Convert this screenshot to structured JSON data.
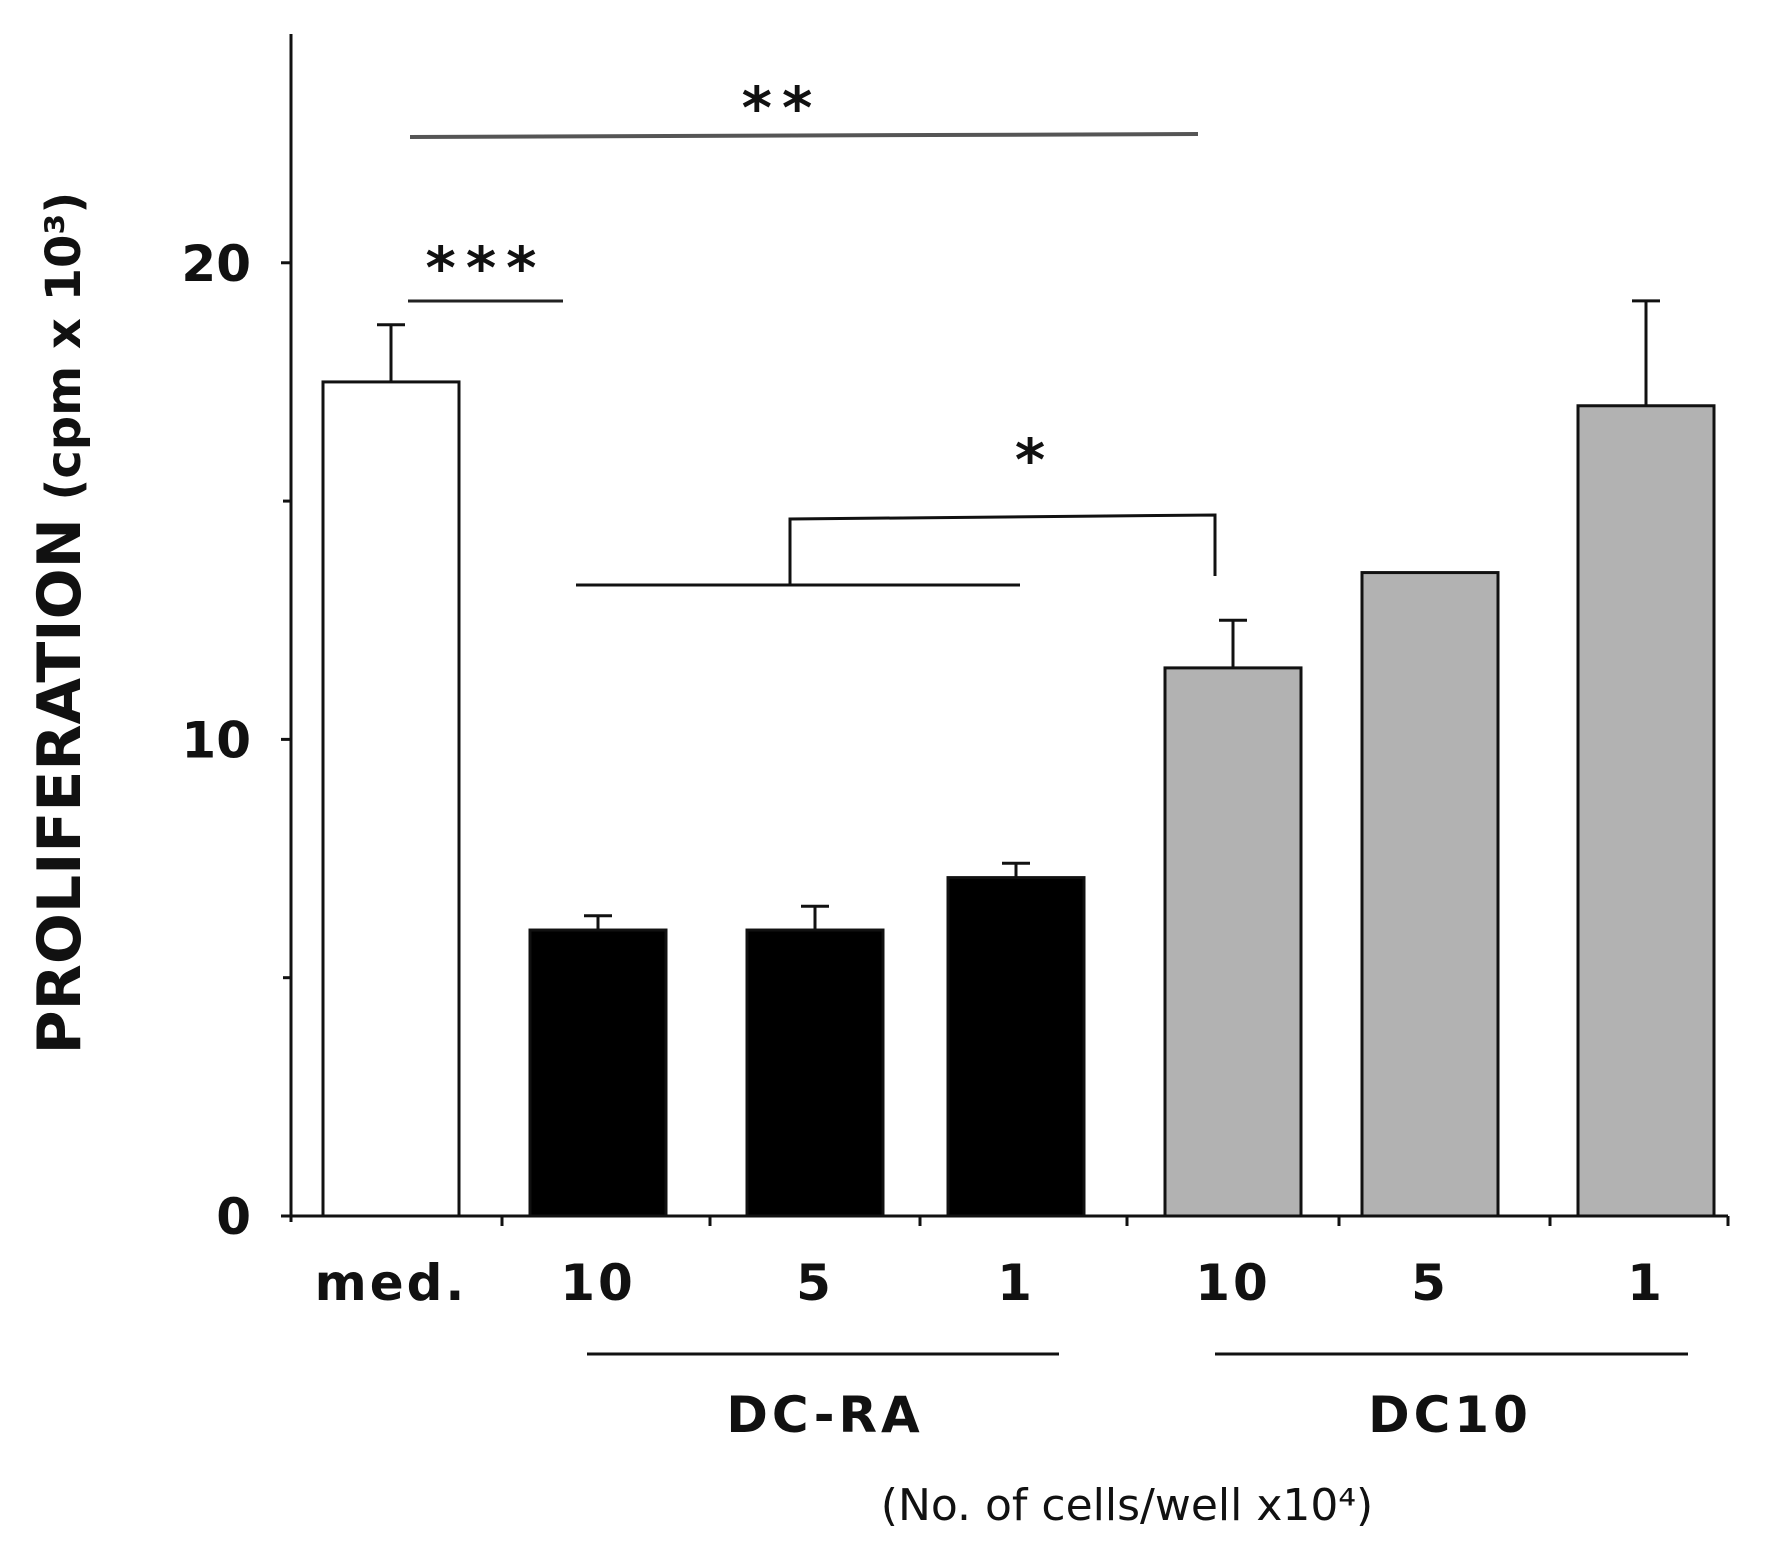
{
  "chart_data": {
    "type": "bar",
    "title": "",
    "ylabel": "PROLIFERATION",
    "ylabel_unit": "(cpm x 10³)",
    "xlabel": "(No. of cells/well x10⁴)",
    "ylim": [
      0,
      24.8
    ],
    "yticks": [
      0,
      10,
      20
    ],
    "yminor_ticks": [
      5,
      15
    ],
    "grid": false,
    "categories": [
      "med.",
      "10",
      "5",
      "1",
      "10",
      "5",
      "1"
    ],
    "groups": [
      {
        "name": "DC-RA",
        "members": [
          1,
          2,
          3
        ]
      },
      {
        "name": "DC10",
        "members": [
          4,
          5,
          6
        ]
      }
    ],
    "values": [
      17.5,
      6.0,
      6.0,
      7.1,
      11.5,
      13.5,
      17.0
    ],
    "error_upper": [
      18.7,
      6.3,
      6.5,
      7.4,
      12.5,
      13.5,
      19.2
    ],
    "colors": [
      "#ffffff",
      "#000000",
      "#000000",
      "#000000",
      "#b2b2b2",
      "#b2b2b2",
      "#b2b2b2"
    ],
    "significance": [
      {
        "label": "**",
        "compare": "med. vs DC10 10"
      },
      {
        "label": "***",
        "compare": "med. vs DC-RA 10"
      },
      {
        "label": "*",
        "compare": "DC-RA (all) vs DC10 10"
      }
    ]
  }
}
